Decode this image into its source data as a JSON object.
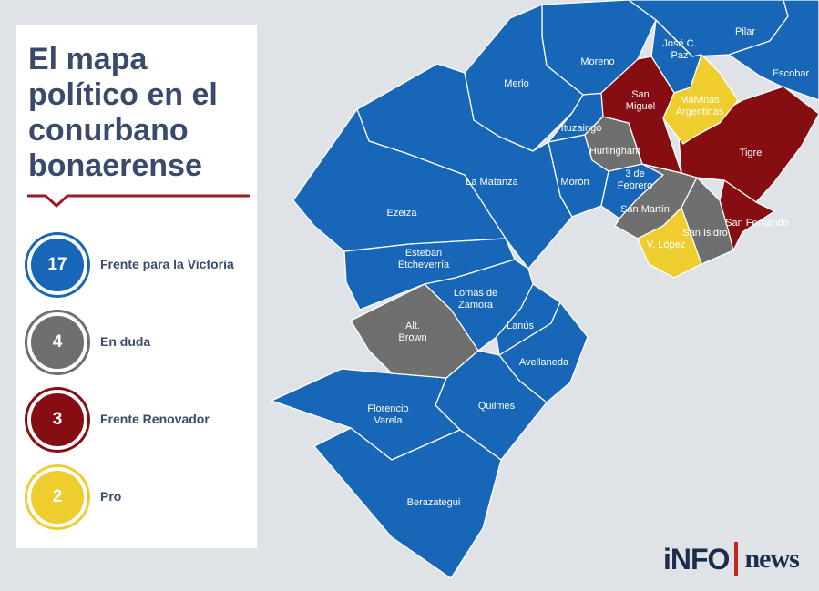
{
  "title_lines": [
    "El mapa",
    "político en el",
    "conurbano",
    "bonaerense"
  ],
  "colors": {
    "frente_para_la_victoria": "#1766b8",
    "en_duda": "#6f6f6f",
    "frente_renovador": "#860e12",
    "pro": "#f0cd2e",
    "title_text": "#3a4a6b",
    "divider": "#9b1b22",
    "background": "#dfe2e6"
  },
  "legend": [
    {
      "count": "17",
      "label": "Frente para la Victoria",
      "color": "#1766b8"
    },
    {
      "count": "4",
      "label": "En duda",
      "color": "#6f6f6f"
    },
    {
      "count": "3",
      "label": "Frente Renovador",
      "color": "#860e12"
    },
    {
      "count": "2",
      "label": "Pro",
      "color": "#f0cd2e"
    }
  ],
  "municipalities": [
    {
      "name": "Pilar",
      "party": "frente_para_la_victoria"
    },
    {
      "name": "Escobar",
      "party": "frente_para_la_victoria"
    },
    {
      "name": "Moreno",
      "party": "frente_para_la_victoria"
    },
    {
      "name": "José C. Paz",
      "lines": [
        "José C.",
        "Paz"
      ],
      "party": "frente_para_la_victoria"
    },
    {
      "name": "Merlo",
      "party": "frente_para_la_victoria"
    },
    {
      "name": "Ituzaingó",
      "party": "frente_para_la_victoria"
    },
    {
      "name": "La Matanza",
      "party": "frente_para_la_victoria"
    },
    {
      "name": "Morón",
      "party": "frente_para_la_victoria"
    },
    {
      "name": "3 de Febrero",
      "lines": [
        "3 de",
        "Febrero"
      ],
      "party": "frente_para_la_victoria"
    },
    {
      "name": "Ezeiza",
      "party": "frente_para_la_victoria"
    },
    {
      "name": "Esteban Etcheverría",
      "lines": [
        "Esteban",
        "Etcheverría"
      ],
      "party": "frente_para_la_victoria"
    },
    {
      "name": "Lomas de Zamora",
      "lines": [
        "Lomas de",
        "Zamora"
      ],
      "party": "frente_para_la_victoria"
    },
    {
      "name": "Lanús",
      "party": "frente_para_la_victoria"
    },
    {
      "name": "Avellaneda",
      "party": "frente_para_la_victoria"
    },
    {
      "name": "Quilmes",
      "party": "frente_para_la_victoria"
    },
    {
      "name": "Florencio Varela",
      "lines": [
        "Florencio",
        "Varela"
      ],
      "party": "frente_para_la_victoria"
    },
    {
      "name": "Berazategui",
      "party": "frente_para_la_victoria"
    },
    {
      "name": "Hurlingham",
      "party": "en_duda"
    },
    {
      "name": "San Martín",
      "party": "en_duda"
    },
    {
      "name": "San Isidro",
      "party": "en_duda"
    },
    {
      "name": "Alt. Brown",
      "lines": [
        "Alt.",
        "Brown"
      ],
      "party": "en_duda"
    },
    {
      "name": "San Miguel",
      "lines": [
        "San",
        "Miguel"
      ],
      "party": "frente_renovador"
    },
    {
      "name": "Tigre",
      "party": "frente_renovador"
    },
    {
      "name": "San Fernando",
      "party": "frente_renovador"
    },
    {
      "name": "Malvinas Argentinas",
      "lines": [
        "Malvinas",
        "Argentinas"
      ],
      "party": "pro"
    },
    {
      "name": "V. López",
      "party": "pro"
    }
  ],
  "logo": {
    "left": "iNFO",
    "right": "news"
  }
}
